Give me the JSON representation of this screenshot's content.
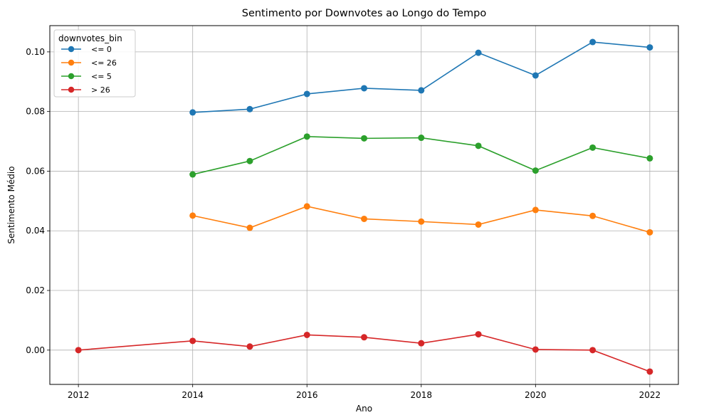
{
  "chart_data": {
    "type": "line",
    "title": "Sentimento por Downvotes ao Longo do Tempo",
    "xlabel": "Ano",
    "ylabel": "Sentimento Médio",
    "xlim": [
      2011.5,
      2022.5
    ],
    "ylim": [
      -0.0115,
      0.1088
    ],
    "xticks": [
      2012,
      2014,
      2016,
      2018,
      2020,
      2022
    ],
    "xtick_labels": [
      "2012",
      "2014",
      "2016",
      "2018",
      "2020",
      "2022"
    ],
    "yticks": [
      0.0,
      0.02,
      0.04,
      0.06,
      0.08,
      0.1
    ],
    "ytick_labels": [
      "0.00",
      "0.02",
      "0.04",
      "0.06",
      "0.08",
      "0.10"
    ],
    "grid": true,
    "legend": {
      "title": "downvotes_bin",
      "position": "top-left"
    },
    "series": [
      {
        "name": "<= 0",
        "color": "#1f77b4",
        "x": [
          2014,
          2015,
          2016,
          2017,
          2018,
          2019,
          2020,
          2021,
          2022
        ],
        "y": [
          0.0797,
          0.0808,
          0.0859,
          0.0878,
          0.0871,
          0.0997,
          0.0921,
          0.1033,
          0.1015
        ]
      },
      {
        "name": "<= 26",
        "color": "#ff7f0e",
        "x": [
          2014,
          2015,
          2016,
          2017,
          2018,
          2019,
          2020,
          2021,
          2022
        ],
        "y": [
          0.0451,
          0.041,
          0.0482,
          0.044,
          0.0431,
          0.0421,
          0.047,
          0.045,
          0.0395
        ]
      },
      {
        "name": "<= 5",
        "color": "#2ca02c",
        "x": [
          2014,
          2015,
          2016,
          2017,
          2018,
          2019,
          2020,
          2021,
          2022
        ],
        "y": [
          0.0589,
          0.0634,
          0.0716,
          0.071,
          0.0712,
          0.0685,
          0.0602,
          0.0679,
          0.0643
        ]
      },
      {
        "name": "> 26",
        "color": "#d62728",
        "x": [
          2012,
          2014,
          2015,
          2016,
          2017,
          2018,
          2019,
          2020,
          2021,
          2022
        ],
        "y": [
          0.0,
          0.0031,
          0.0012,
          0.0051,
          0.0043,
          0.0023,
          0.0053,
          0.0002,
          0.0,
          -0.0072
        ]
      }
    ]
  }
}
